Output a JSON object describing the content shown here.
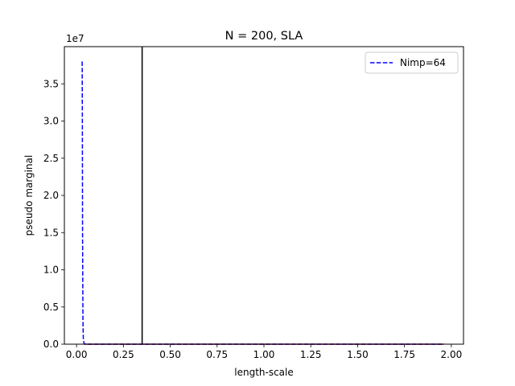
{
  "chart_data": {
    "type": "line",
    "title": "N = 200, SLA",
    "xlabel": "length-scale",
    "ylabel": "pseudo marginal",
    "y_offset_label": "1e7",
    "xlim": [
      -0.065,
      2.065
    ],
    "ylim": [
      0,
      4.0
    ],
    "y_scale_multiplier": 10000000,
    "xticks": [
      0.0,
      0.25,
      0.5,
      0.75,
      1.0,
      1.25,
      1.5,
      1.75,
      2.0
    ],
    "xtick_labels": [
      "0.00",
      "0.25",
      "0.50",
      "0.75",
      "1.00",
      "1.25",
      "1.50",
      "1.75",
      "2.00"
    ],
    "yticks": [
      0.0,
      0.5,
      1.0,
      1.5,
      2.0,
      2.5,
      3.0,
      3.5
    ],
    "ytick_labels": [
      "0.0",
      "0.5",
      "1.0",
      "1.5",
      "2.0",
      "2.5",
      "3.0",
      "3.5"
    ],
    "grid": false,
    "legend_position": "upper right",
    "series": [
      {
        "name": "Nimp=64",
        "style": "dashed",
        "color": "#0000ff",
        "x": [
          0.03,
          0.031,
          0.032,
          0.034,
          0.036,
          0.04,
          0.05,
          0.1,
          0.5,
          1.0,
          1.5,
          1.96
        ],
        "y": [
          3.8,
          3.0,
          1.5,
          0.35,
          0.08,
          0.01,
          0.0,
          0.0,
          0.0,
          0.0,
          0.0,
          0.0
        ]
      },
      {
        "style": "solid",
        "color": "#cc0000",
        "x": [
          0.04,
          0.5,
          1.0,
          1.5,
          1.96
        ],
        "y": [
          0.0,
          0.0,
          0.0,
          0.0,
          0.0
        ]
      }
    ],
    "vlines": [
      {
        "x": 0.35,
        "color": "#000000"
      }
    ]
  }
}
